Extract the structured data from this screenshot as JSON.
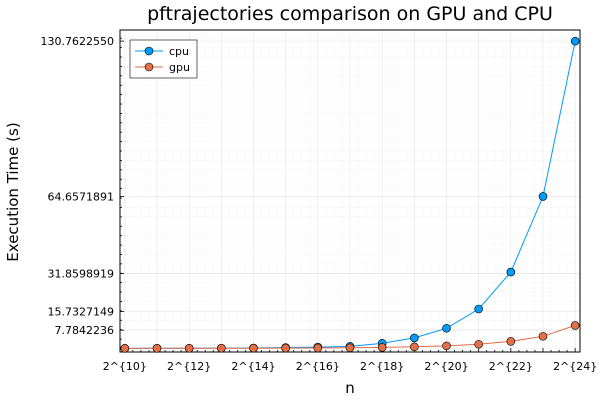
{
  "chart_data": {
    "type": "line",
    "title": "pftrajectories comparison on GPU and CPU",
    "xlabel": "n",
    "ylabel": "Execution Time (s)",
    "x": [
      10,
      11,
      12,
      13,
      14,
      15,
      16,
      17,
      18,
      19,
      20,
      21,
      22,
      23,
      24
    ],
    "x_ticks": [
      10,
      12,
      14,
      16,
      18,
      20,
      22,
      24
    ],
    "x_tick_labels": [
      "2^{10}",
      "2^{12}",
      "2^{14}",
      "2^{16}",
      "2^{18}",
      "2^{20}",
      "2^{22}",
      "2^{24}"
    ],
    "y_ticks": [
      7.7842236,
      15.7327149,
      31.8598919,
      64.6571891,
      130.762255
    ],
    "y_tick_labels": [
      "7.7842236",
      "15.7327149",
      "31.8598919",
      "64.6571891",
      "130.7622550"
    ],
    "xlim": [
      9.85,
      24.15
    ],
    "ylim": [
      -1.5,
      135.5
    ],
    "grid": true,
    "legend_position": "top-left",
    "series": [
      {
        "name": "cpu",
        "color": "#009af9",
        "values": [
          0.05,
          0.08,
          0.1,
          0.15,
          0.2,
          0.4,
          0.6,
          0.9,
          2.2,
          4.5,
          8.6,
          16.8,
          32.5,
          64.7,
          130.76
        ]
      },
      {
        "name": "gpu",
        "color": "#e26f46",
        "values": [
          0.05,
          0.06,
          0.08,
          0.1,
          0.12,
          0.15,
          0.2,
          0.3,
          0.45,
          0.7,
          1.1,
          1.8,
          3.0,
          5.2,
          9.8
        ]
      }
    ]
  }
}
